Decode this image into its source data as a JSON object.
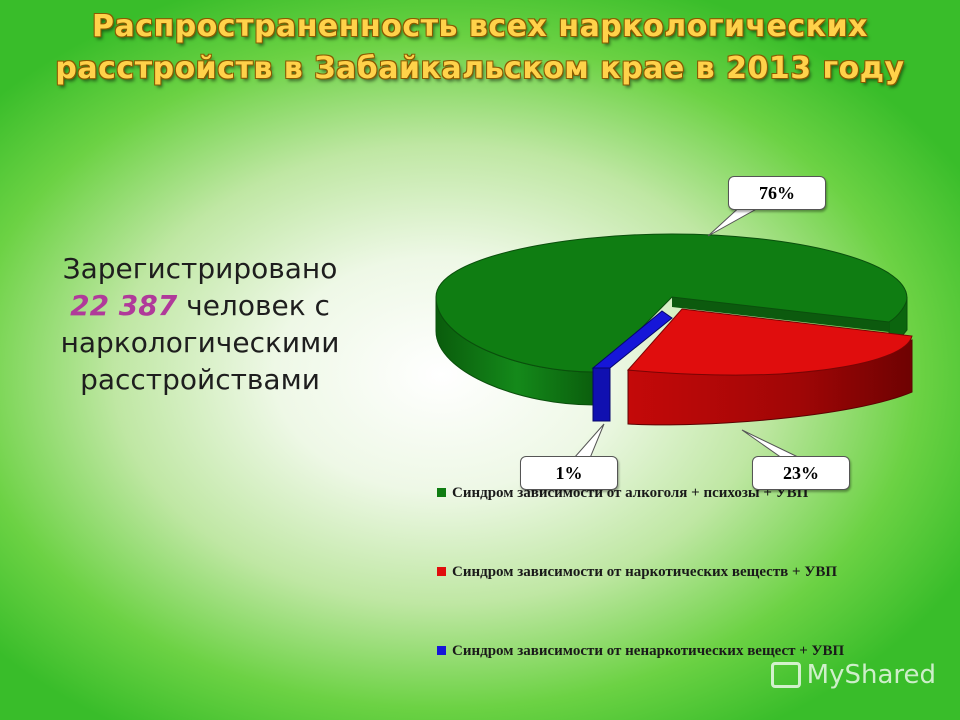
{
  "slide": {
    "title_line1": "Распространенность всех наркологических",
    "title_line2": "расстройств в Забайкальском крае в 2013 году",
    "side_text": {
      "line1": "Зарегистрировано",
      "count": "22 387",
      "line2_rest": " человек с",
      "line3": "наркологическими",
      "line4": "расстройствами"
    },
    "watermark": "MyShared"
  },
  "chart_data": {
    "type": "pie",
    "title": "",
    "slices": [
      {
        "label": "Синдром зависимости от алкоголя + психозы + УВП",
        "value": 76,
        "value_label": "76%",
        "color": "#0f7d12"
      },
      {
        "label": "Синдром зависимости от наркотических веществ + УВП",
        "value": 23,
        "value_label": "23%",
        "color": "#e00d0d"
      },
      {
        "label": "Синдром зависимости от ненаркотических вещест + УВП",
        "value": 1,
        "value_label": "1%",
        "color": "#1616d8"
      }
    ],
    "legend_position": "bottom",
    "style": "3d-exploded"
  }
}
